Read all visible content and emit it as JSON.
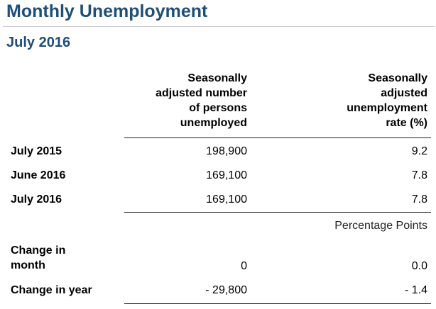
{
  "header": {
    "title": "Monthly Unemployment",
    "period": "July 2016"
  },
  "table": {
    "columns": [
      [
        "Seasonally",
        "adjusted number",
        "of persons",
        "unemployed"
      ],
      [
        "Seasonally",
        "adjusted",
        "unemployment",
        "rate (%)"
      ]
    ],
    "rows": [
      {
        "label": "July 2015",
        "unemployed": "198,900",
        "rate": "9.2"
      },
      {
        "label": "June 2016",
        "unemployed": "169,100",
        "rate": "7.8"
      },
      {
        "label": "July 2016",
        "unemployed": "169,100",
        "rate": "7.8"
      }
    ],
    "changes_unit": "Percentage Points",
    "changes": [
      {
        "label": [
          "Change in",
          "month"
        ],
        "unemployed": "0",
        "rate": "0.0"
      },
      {
        "label": [
          "Change in year"
        ],
        "unemployed": "- 29,800",
        "rate": "- 1.4"
      }
    ]
  }
}
